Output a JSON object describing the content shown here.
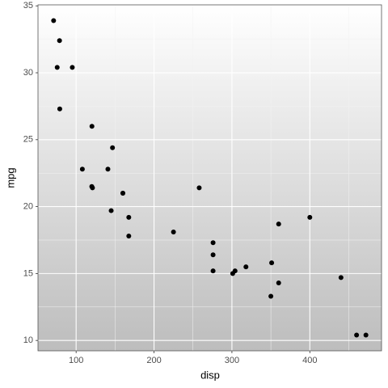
{
  "chart_data": {
    "type": "scatter",
    "x_label": "disp",
    "y_label": "mpg",
    "x": [
      160,
      160,
      108,
      258,
      360,
      225,
      360,
      146.7,
      140.8,
      167.6,
      167.6,
      275.8,
      275.8,
      275.8,
      472,
      460,
      440,
      78.7,
      75.7,
      71.1,
      120.1,
      318,
      304,
      350,
      400,
      79,
      120.3,
      95.1,
      351,
      145,
      301,
      121
    ],
    "values": [
      21,
      21,
      22.8,
      21.4,
      18.7,
      18.1,
      14.3,
      24.4,
      22.8,
      19.2,
      17.8,
      16.4,
      17.3,
      15.2,
      10.4,
      10.4,
      14.7,
      32.4,
      30.4,
      33.9,
      21.5,
      15.5,
      15.2,
      13.3,
      19.2,
      27.3,
      26,
      30.4,
      15.8,
      19.7,
      15,
      21.4
    ],
    "color": "#000000",
    "xlim": [
      51.055,
      492.045
    ],
    "ylim": [
      9.225,
      35.075
    ],
    "xticks": [
      100,
      200,
      300,
      400
    ],
    "yticks": [
      10,
      15,
      20,
      25,
      30,
      35
    ],
    "x_minor_ticks": [
      150,
      250,
      350,
      450
    ],
    "y_minor_ticks": [
      12.5,
      17.5,
      22.5,
      27.5,
      32.5
    ],
    "grid": true
  }
}
